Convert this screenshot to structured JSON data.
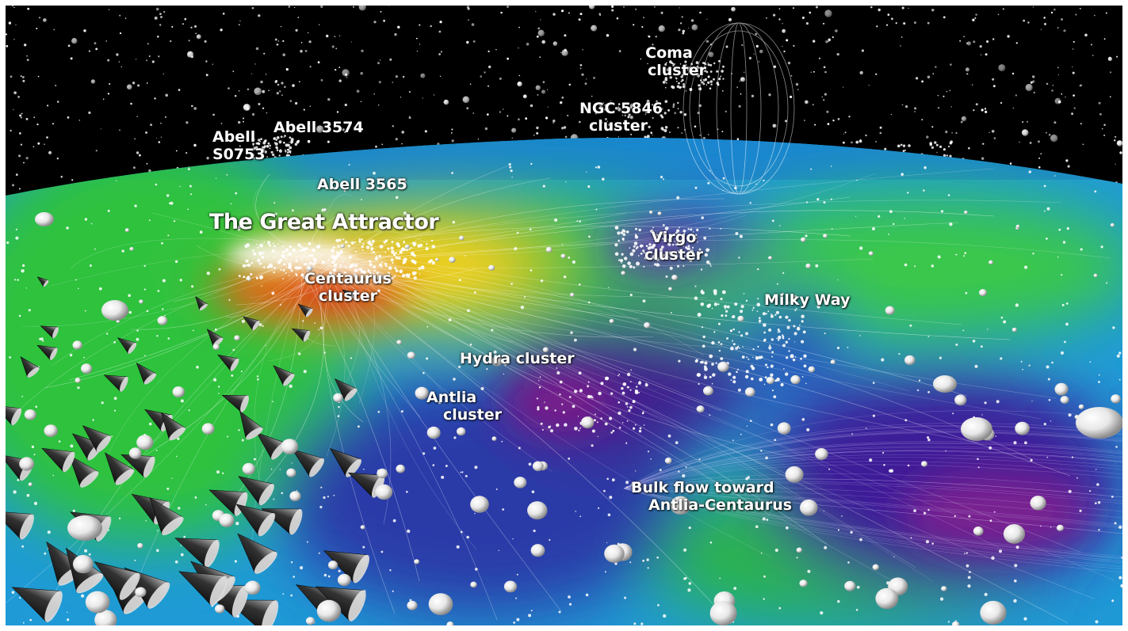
{
  "labels": {
    "coma": [
      "Coma",
      "cluster"
    ],
    "ngc5846": [
      "NGC 5846",
      "cluster"
    ],
    "abell3574": "Abell 3574",
    "abells0753": [
      "Abell",
      "S0753"
    ],
    "abell3565": "Abell 3565",
    "great_attractor": "The Great Attractor",
    "centaurus": [
      "Centaurus",
      "cluster"
    ],
    "virgo": [
      "Virgo",
      "cluster"
    ],
    "milky_way": "Milky Way",
    "hydra": "Hydra cluster",
    "antlia": [
      "Antlia",
      "cluster"
    ],
    "bulk_flow": [
      "Bulk flow toward",
      "Antlia-Centaurus"
    ]
  },
  "colors": {
    "space": "#000000",
    "density_high": "#d8281c",
    "density_mid_high": "#f0d020",
    "density_mid": "#22c23a",
    "density_low": "#1c8fd6",
    "density_void": "#3a1f9c",
    "density_deep_void": "#6b1f8f"
  }
}
